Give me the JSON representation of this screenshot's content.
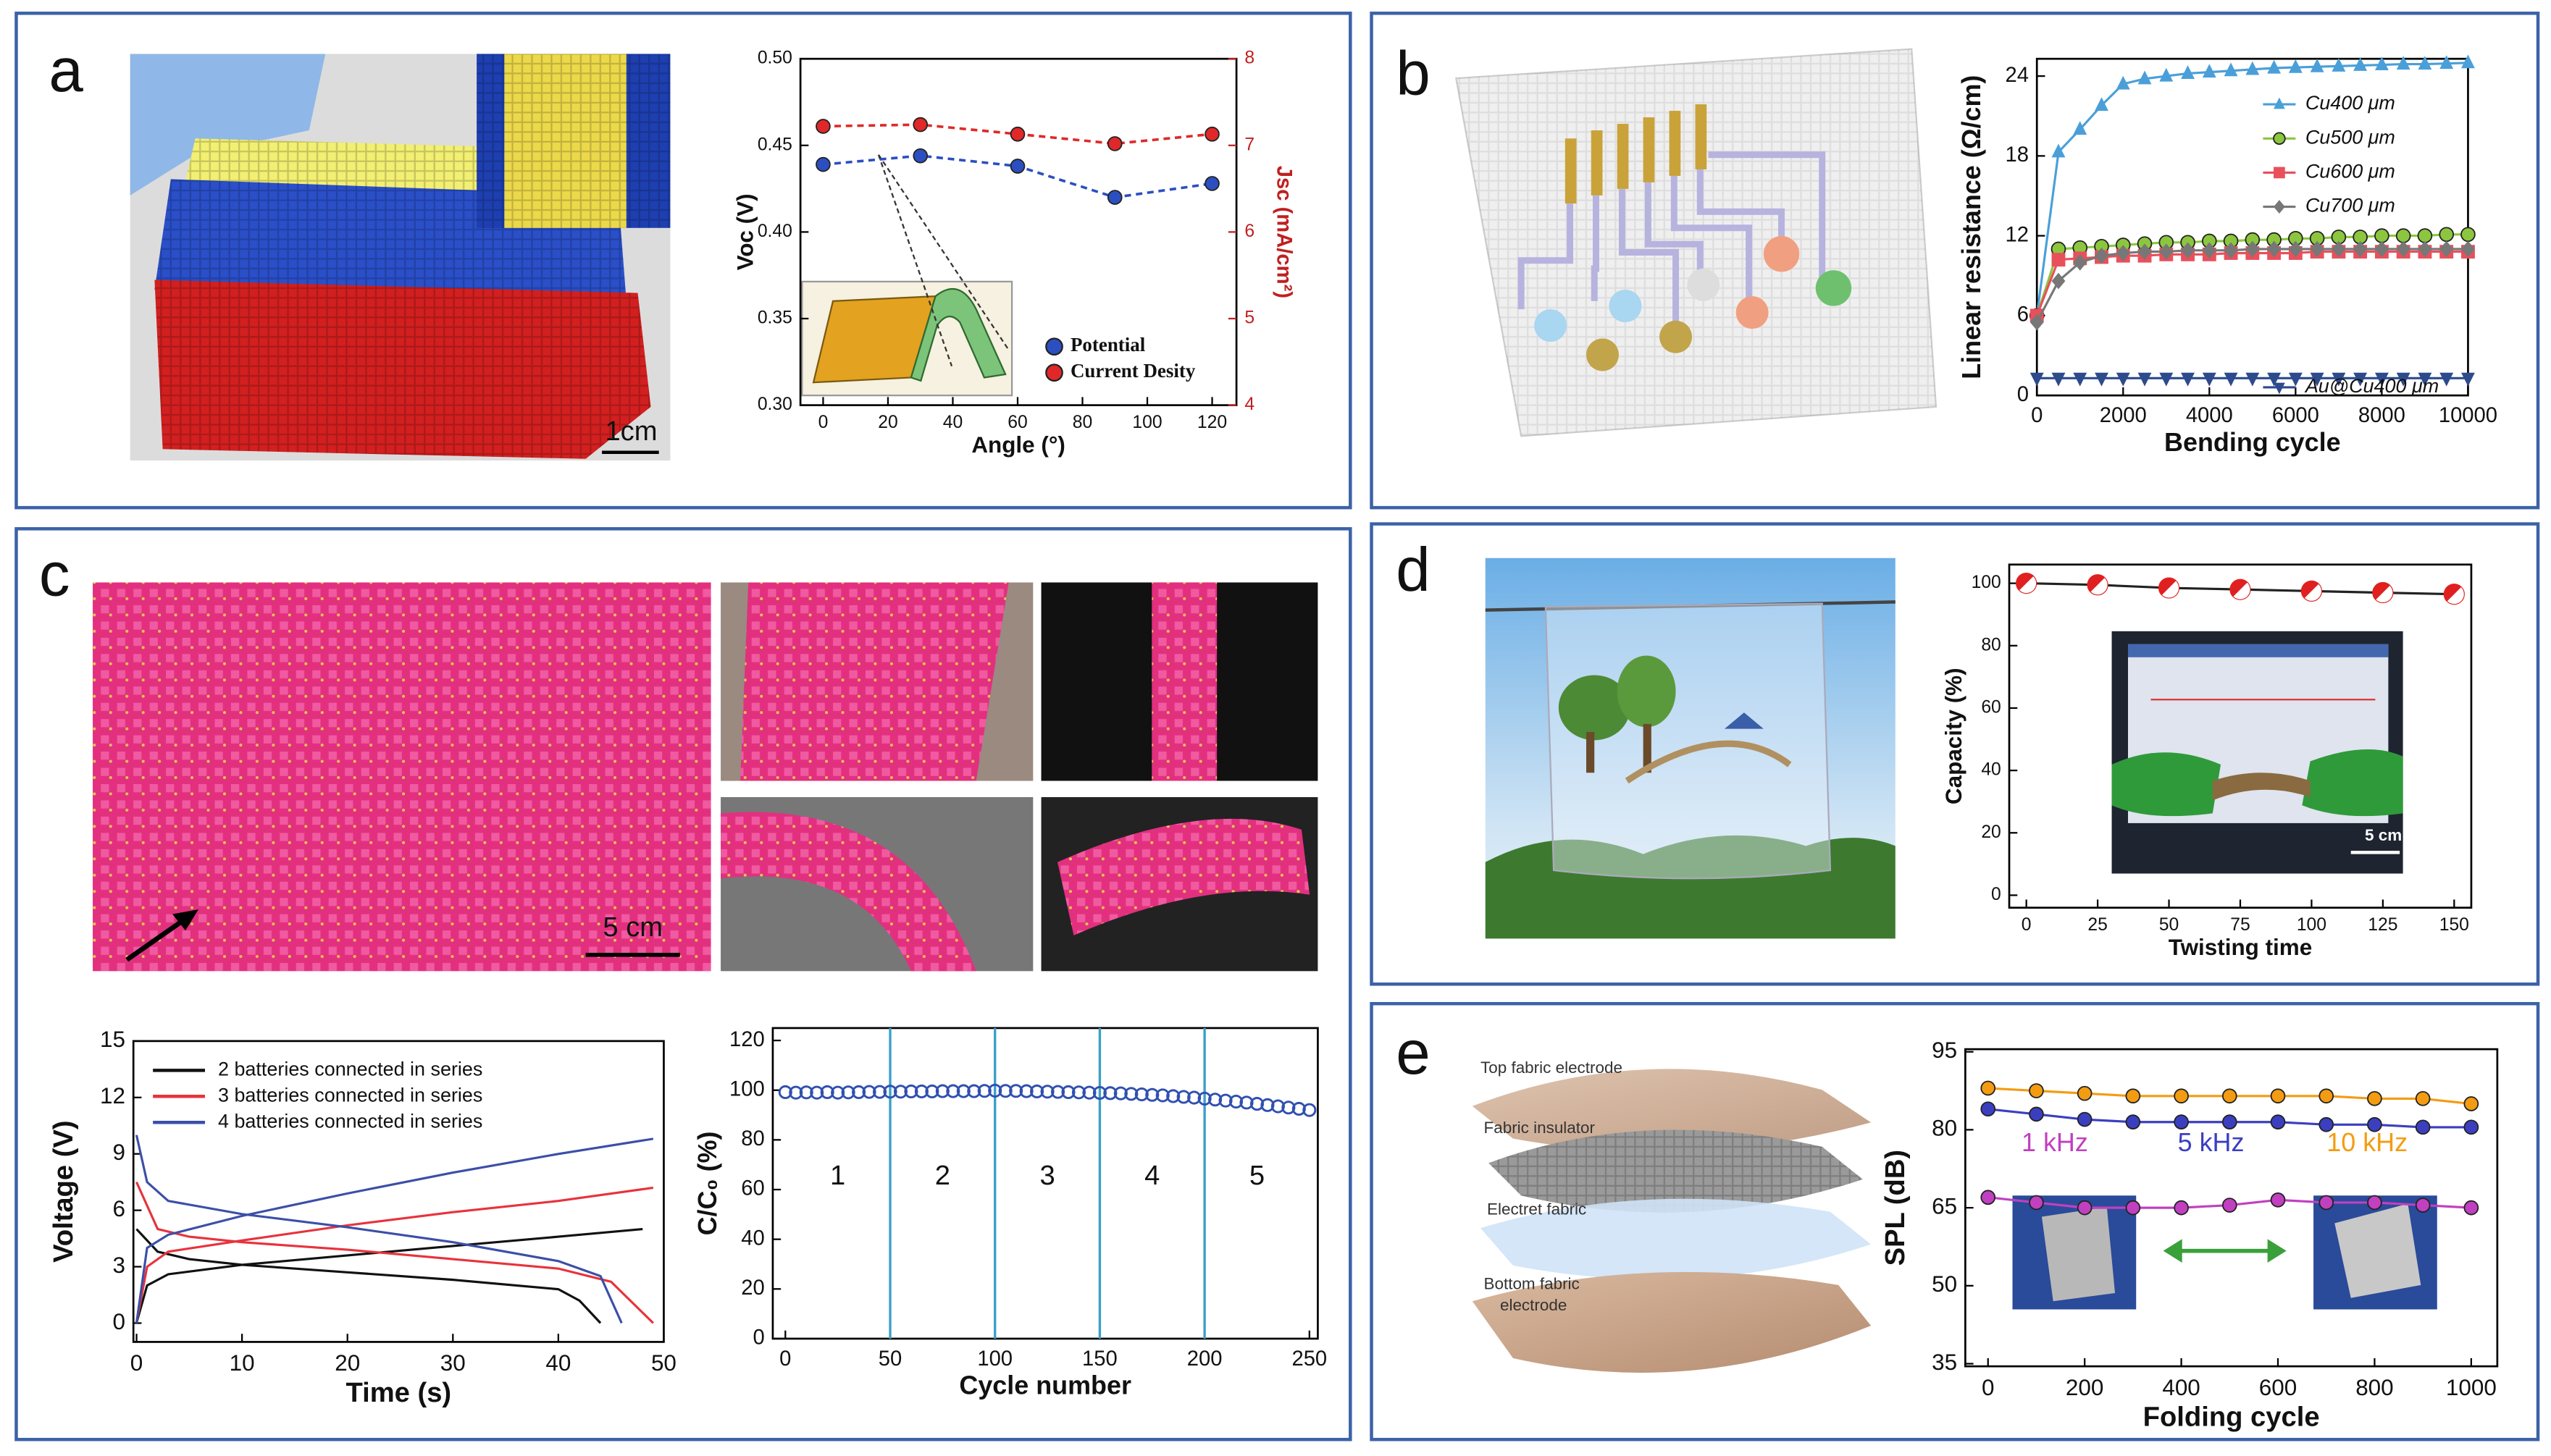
{
  "panels": [
    "a",
    "b",
    "c",
    "d",
    "e"
  ],
  "photo_labels": {
    "a_scale": "1cm",
    "c_scale": "5 cm",
    "d_scale": "5 cm"
  },
  "layers": [
    "Top fabric electrode",
    "Fabric insulator",
    "Electret fabric",
    "Bottom fabric",
    "electrode"
  ],
  "chart_data": [
    {
      "type": "line",
      "xlabel": "Angle (°)",
      "ylabel": "Voc (V)",
      "y2label": "Jsc (mA/cm²)",
      "xlim": [
        -7,
        127.5
      ],
      "ylim": [
        0.3,
        0.5
      ],
      "y2lim": [
        4,
        8
      ],
      "xticks": [
        0,
        20,
        40,
        60,
        80,
        100,
        120
      ],
      "yticks": [
        {
          "value": 0.3,
          "label": "0.30"
        },
        {
          "value": 0.35,
          "label": "0.35"
        },
        {
          "value": 0.4,
          "label": "0.40"
        },
        {
          "value": 0.45,
          "label": "0.45"
        },
        {
          "value": 0.5,
          "label": "0.50"
        }
      ],
      "y2ticks": [
        4,
        5,
        6,
        7,
        8
      ],
      "legend": "lower-right",
      "line_style": "dashed",
      "x": [
        0,
        30,
        60,
        90,
        120
      ],
      "series": [
        {
          "name": "Potential",
          "color": "#2b4fc0",
          "marker": "circle",
          "values": [
            0.439,
            0.444,
            0.438,
            0.42,
            0.428
          ]
        },
        {
          "name": "Current Desity",
          "color": "#e02828",
          "marker": "circle",
          "axis": "y2",
          "values": [
            7.22,
            7.24,
            7.13,
            7.02,
            7.13
          ]
        }
      ]
    },
    {
      "type": "line",
      "xlabel": "Bending cycle",
      "ylabel": "Linear resistance (Ω/cm)",
      "xlim": [
        0,
        10000
      ],
      "ylim": [
        0,
        25.3
      ],
      "xticks": [
        0,
        2000,
        4000,
        6000,
        8000,
        10000
      ],
      "yticks": [
        0,
        6,
        12,
        18,
        24
      ],
      "legend": "upper-right",
      "line_style": "solid",
      "x": [
        0,
        500,
        1000,
        1500,
        2000,
        2500,
        3000,
        3500,
        4000,
        4500,
        5000,
        5500,
        6000,
        6500,
        7000,
        7500,
        8000,
        8500,
        9000,
        9500,
        10000
      ],
      "series": [
        {
          "name": "Cu400 μm",
          "color": "#4a9fd8",
          "marker": "triangle",
          "values": [
            6,
            18.3,
            20,
            21.8,
            23.4,
            23.8,
            24,
            24.2,
            24.3,
            24.4,
            24.5,
            24.6,
            24.65,
            24.7,
            24.75,
            24.8,
            24.85,
            24.9,
            24.9,
            24.95,
            25
          ]
        },
        {
          "name": "Cu500 μm",
          "color": "#8cc63f",
          "marker": "circle",
          "values": [
            6,
            11,
            11.1,
            11.2,
            11.3,
            11.4,
            11.5,
            11.5,
            11.6,
            11.6,
            11.7,
            11.7,
            11.8,
            11.8,
            11.9,
            11.9,
            12,
            12,
            12,
            12.1,
            12.1
          ]
        },
        {
          "name": "Cu600 μm",
          "color": "#e8505b",
          "marker": "square",
          "values": [
            6,
            10.2,
            10.3,
            10.4,
            10.5,
            10.5,
            10.6,
            10.6,
            10.6,
            10.7,
            10.7,
            10.7,
            10.7,
            10.8,
            10.8,
            10.8,
            10.8,
            10.8,
            10.8,
            10.8,
            10.8
          ]
        },
        {
          "name": "Cu700 μm",
          "color": "#777777",
          "marker": "diamond",
          "values": [
            5.5,
            8.6,
            10,
            10.5,
            10.7,
            10.8,
            10.8,
            10.9,
            10.9,
            10.9,
            11,
            11,
            11,
            11,
            11,
            11,
            11,
            11,
            11,
            11,
            11
          ]
        },
        {
          "name": "Au@Cu400 μm",
          "color": "#2d4b8c",
          "marker": "triangle-down",
          "values": [
            1.3,
            1.3,
            1.3,
            1.3,
            1.3,
            1.3,
            1.3,
            1.3,
            1.3,
            1.3,
            1.3,
            1.3,
            1.3,
            1.3,
            1.3,
            1.3,
            1.3,
            1.3,
            1.3,
            1.3,
            1.3
          ]
        }
      ]
    },
    {
      "type": "line",
      "xlabel": "Time (s)",
      "ylabel": "Voltage (V)",
      "xlim": [
        -0.3,
        50
      ],
      "ylim": [
        -1,
        15
      ],
      "xticks": [
        0,
        10,
        20,
        30,
        40,
        50
      ],
      "yticks": [
        0,
        3,
        6,
        9,
        12,
        15
      ],
      "legend": "upper-left",
      "line_style": "solid",
      "series": [
        {
          "name": "2 batteries connected in series",
          "color": "#111111",
          "x": [
            0,
            2,
            5,
            10,
            20,
            30,
            40,
            42,
            44,
            null,
            0,
            1,
            3,
            10,
            20,
            30,
            40,
            48
          ],
          "values": [
            5,
            3.8,
            3.4,
            3.1,
            2.7,
            2.3,
            1.8,
            1.2,
            0,
            null,
            0,
            2,
            2.6,
            3.1,
            3.6,
            4.1,
            4.6,
            5
          ]
        },
        {
          "name": "3 batteries connected in series",
          "color": "#e8323c",
          "x": [
            0,
            2,
            5,
            10,
            20,
            30,
            40,
            45,
            49,
            null,
            0,
            1,
            3,
            10,
            20,
            30,
            40,
            49
          ],
          "values": [
            7.5,
            5,
            4.6,
            4.3,
            3.9,
            3.4,
            2.9,
            2.2,
            0,
            null,
            0,
            3,
            3.8,
            4.4,
            5.2,
            5.9,
            6.5,
            7.2
          ]
        },
        {
          "name": "4 batteries connected in series",
          "color": "#3b4fa8",
          "x": [
            0,
            1,
            3,
            10,
            20,
            30,
            40,
            44,
            46,
            null,
            0,
            1,
            3,
            10,
            20,
            30,
            40,
            49
          ],
          "values": [
            10,
            7.5,
            6.5,
            5.8,
            5.1,
            4.3,
            3.3,
            2.5,
            0,
            null,
            0,
            4,
            4.7,
            5.7,
            6.9,
            8,
            9,
            9.8
          ]
        }
      ]
    },
    {
      "type": "scatter",
      "xlabel": "Cycle number",
      "ylabel": "C/C₀ (%)",
      "xlim": [
        -6,
        254
      ],
      "ylim": [
        0,
        125
      ],
      "xticks": [
        0,
        50,
        100,
        150,
        200,
        250
      ],
      "yticks": [
        0,
        20,
        40,
        60,
        80,
        100,
        120
      ],
      "dividers": [
        50,
        100,
        150,
        200
      ],
      "divider_color": "#3aa0c8",
      "section_labels": [
        "1",
        "2",
        "3",
        "4",
        "5"
      ],
      "x": [
        0,
        5,
        10,
        15,
        20,
        25,
        30,
        35,
        40,
        45,
        50,
        55,
        60,
        65,
        70,
        75,
        80,
        85,
        90,
        95,
        100,
        105,
        110,
        115,
        120,
        125,
        130,
        135,
        140,
        145,
        150,
        155,
        160,
        165,
        170,
        175,
        180,
        185,
        190,
        195,
        200,
        205,
        210,
        215,
        220,
        225,
        230,
        235,
        240,
        245,
        250
      ],
      "series": [
        {
          "color": "#3050b0",
          "marker": "open-circle",
          "values": [
            99.2,
            99.0,
            99.1,
            99.0,
            99.2,
            99.0,
            99.1,
            99.2,
            99.3,
            99.3,
            99.4,
            99.4,
            99.5,
            99.5,
            99.5,
            99.6,
            99.6,
            99.6,
            99.6,
            99.7,
            99.8,
            99.7,
            99.7,
            99.6,
            99.5,
            99.4,
            99.3,
            99.2,
            99.1,
            99.0,
            98.9,
            98.8,
            98.7,
            98.5,
            98.3,
            98.1,
            97.9,
            97.6,
            97.3,
            97.0,
            96.6,
            96.2,
            95.8,
            95.4,
            95.0,
            94.5,
            94.0,
            93.5,
            93.0,
            92.5,
            92.0
          ]
        }
      ]
    },
    {
      "type": "line",
      "xlabel": "Twisting time",
      "ylabel": "Capacity (%)",
      "xlim": [
        -6,
        156
      ],
      "ylim": [
        -4,
        106
      ],
      "xticks": [
        0,
        25,
        50,
        75,
        100,
        125,
        150
      ],
      "yticks": [
        0,
        20,
        40,
        60,
        80,
        100
      ],
      "line_style": "solid",
      "x": [
        0,
        25,
        50,
        75,
        100,
        125,
        150
      ],
      "series": [
        {
          "color": "#222222",
          "marker": "half-circle",
          "marker_color": "#e02020",
          "values": [
            100,
            99.5,
            98.5,
            98,
            97.5,
            97,
            96.5
          ]
        }
      ]
    },
    {
      "type": "line",
      "xlabel": "Folding cycle",
      "ylabel": "SPL (dB)",
      "xlim": [
        -47,
        1054
      ],
      "ylim": [
        34.5,
        95.5
      ],
      "xticks": [
        0,
        200,
        400,
        600,
        800,
        1000
      ],
      "yticks": [
        35,
        50,
        65,
        80,
        95
      ],
      "legend": "center",
      "line_style": "solid",
      "x": [
        0,
        100,
        200,
        300,
        400,
        500,
        600,
        700,
        800,
        900,
        1000
      ],
      "series": [
        {
          "name": "1 kHz",
          "color": "#c040c0",
          "marker": "circle",
          "values": [
            67,
            66,
            65,
            65,
            65,
            65.5,
            66.5,
            66,
            66,
            65.5,
            65
          ]
        },
        {
          "name": "5 kHz",
          "color": "#3b3fbf",
          "marker": "circle",
          "values": [
            84,
            83,
            82,
            81.5,
            81.5,
            81.5,
            81.5,
            81,
            81,
            80.5,
            80.5
          ]
        },
        {
          "name": "10 kHz",
          "color": "#f39c12",
          "marker": "circle",
          "values": [
            88,
            87.5,
            87,
            86.5,
            86.5,
            86.5,
            86.5,
            86.5,
            86,
            86,
            85
          ]
        }
      ]
    }
  ]
}
